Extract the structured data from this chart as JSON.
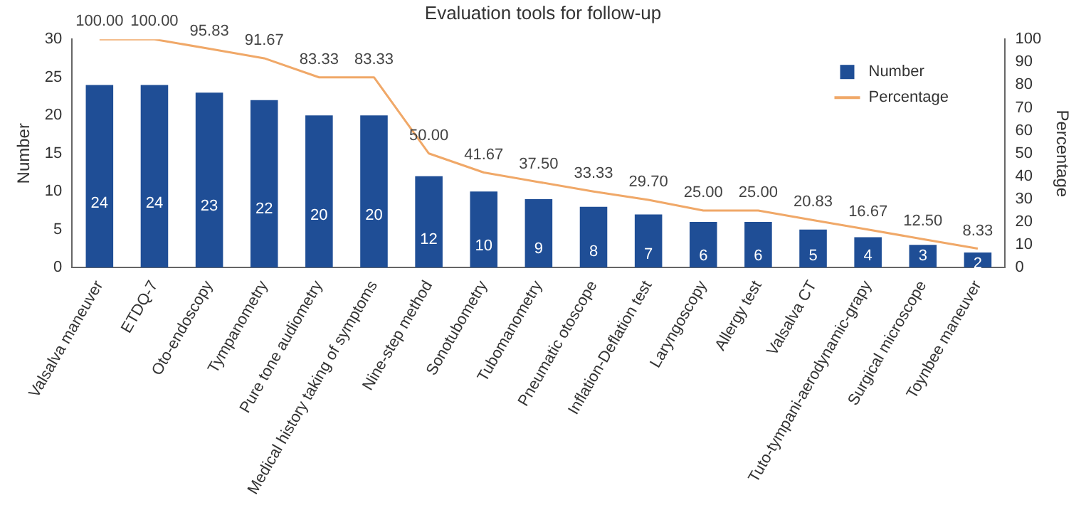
{
  "chart_data": {
    "type": "bar",
    "title": "Evaluation tools for follow-up",
    "ylabel": "Number",
    "y2label": "Percentage",
    "categories": [
      "Valsalva maneuver",
      "ETDQ-7",
      "Oto-endoscopy",
      "Tympanometry",
      "Pure tone audiometry",
      "Medical history taking of symptoms",
      "Nine-step method",
      "Sonotubometry",
      "Tubomanometry",
      "Pneumatic otoscope",
      "Inflation-Deflation test",
      "Laryngoscopy",
      "Allergy test",
      "Valsalva CT",
      "Tuto-tympani-aerodynamic-grapy",
      "Surgical microscope",
      "Toynbee maneuver"
    ],
    "series": [
      {
        "name": "Number",
        "color": "#1f4e96",
        "values": [
          24,
          24,
          23,
          22,
          20,
          20,
          12,
          10,
          9,
          8,
          7,
          6,
          6,
          5,
          4,
          3,
          2
        ],
        "value_labels": [
          "24",
          "24",
          "23",
          "22",
          "20",
          "20",
          "12",
          "10",
          "9",
          "8",
          "7",
          "6",
          "6",
          "5",
          "4",
          "3",
          "2"
        ]
      },
      {
        "name": "Percentage",
        "type": "line",
        "axis": "y2",
        "color": "#f0a868",
        "values": [
          100,
          100,
          95.83,
          91.67,
          83.33,
          83.33,
          50,
          41.67,
          37.5,
          33.33,
          29.7,
          25,
          25,
          20.83,
          16.67,
          12.5,
          8.33
        ],
        "value_labels": [
          "100.00",
          "100.00",
          "95.83",
          "91.67",
          "83.33",
          "83.33",
          "50.00",
          "41.67",
          "37.50",
          "33.33",
          "29.70",
          "25.00",
          "25.00",
          "20.83",
          "16.67",
          "12.50",
          "8.33"
        ]
      }
    ],
    "ylim": [
      0,
      30
    ],
    "yticks": [
      0,
      5,
      10,
      15,
      20,
      25,
      30
    ],
    "y2lim": [
      0,
      100
    ],
    "y2ticks": [
      0,
      10,
      20,
      30,
      40,
      50,
      60,
      70,
      80,
      90,
      100
    ],
    "grid": false,
    "legend": "top right",
    "marker": "none"
  }
}
